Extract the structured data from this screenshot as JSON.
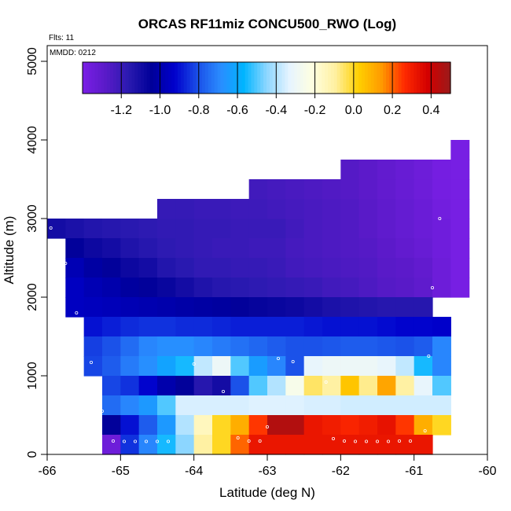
{
  "chart_data": {
    "type": "heatmap",
    "title": "ORCAS RF11miz CONCU500_RWO (Log)",
    "flights_label": "Flts: 11",
    "date_label": "MMDD: 0212",
    "xlabel": "Latitude (deg N)",
    "ylabel": "Altitude (m)",
    "xlim": [
      -66,
      -60
    ],
    "ylim": [
      0,
      5200
    ],
    "x_ticks": [
      -66,
      -65,
      -64,
      -63,
      -62,
      -61,
      -60
    ],
    "y_ticks": [
      0,
      1000,
      2000,
      3000,
      4000,
      5000
    ],
    "grid": false,
    "legend": "colorbar-top",
    "colorbar": {
      "range": [
        -1.4,
        0.5
      ],
      "ticks": [
        -1.2,
        -1.0,
        -0.8,
        -0.6,
        -0.4,
        -0.2,
        0.0,
        0.2,
        0.4
      ],
      "colors": [
        "#7a1fe6",
        "#5a1ac8",
        "#2a1ab0",
        "#000099",
        "#0000cc",
        "#1a4fe8",
        "#2a8cff",
        "#00b4ff",
        "#8cd6ff",
        "#e6f4ff",
        "#ffffe0",
        "#fff0a0",
        "#ffd000",
        "#ff9a00",
        "#ff2a00",
        "#d40000",
        "#9a1a1a"
      ]
    },
    "cells": [
      [
        -66.0,
        2750,
        -1.1
      ],
      [
        -65.75,
        2750,
        -1.12
      ],
      [
        -65.5,
        2750,
        -1.14
      ],
      [
        -65.25,
        2750,
        -1.15
      ],
      [
        -65.0,
        2750,
        -1.16
      ],
      [
        -64.75,
        2750,
        -1.17
      ],
      [
        -64.5,
        2750,
        -1.18
      ],
      [
        -64.25,
        2750,
        -1.18
      ],
      [
        -64.0,
        2750,
        -1.19
      ],
      [
        -63.75,
        2750,
        -1.19
      ],
      [
        -63.5,
        2750,
        -1.2
      ],
      [
        -63.25,
        2750,
        -1.2
      ],
      [
        -63.0,
        2750,
        -1.2
      ],
      [
        -62.75,
        2750,
        -1.22
      ],
      [
        -62.5,
        2750,
        -1.24
      ],
      [
        -62.25,
        2750,
        -1.25
      ],
      [
        -62.0,
        2750,
        -1.26
      ],
      [
        -61.75,
        2750,
        -1.28
      ],
      [
        -61.5,
        2750,
        -1.3
      ],
      [
        -61.25,
        2750,
        -1.32
      ],
      [
        -61.0,
        2750,
        -1.34
      ],
      [
        -60.75,
        2750,
        -1.36
      ],
      [
        -65.75,
        2500,
        -1.05
      ],
      [
        -65.5,
        2500,
        -1.08
      ],
      [
        -65.25,
        2500,
        -1.1
      ],
      [
        -65.0,
        2500,
        -1.13
      ],
      [
        -64.75,
        2500,
        -1.15
      ],
      [
        -64.5,
        2500,
        -1.17
      ],
      [
        -64.25,
        2500,
        -1.18
      ],
      [
        -64.0,
        2500,
        -1.19
      ],
      [
        -63.75,
        2500,
        -1.2
      ],
      [
        -63.5,
        2500,
        -1.2
      ],
      [
        -63.25,
        2500,
        -1.21
      ],
      [
        -63.0,
        2500,
        -1.21
      ],
      [
        -62.75,
        2500,
        -1.23
      ],
      [
        -62.5,
        2500,
        -1.24
      ],
      [
        -62.25,
        2500,
        -1.25
      ],
      [
        -62.0,
        2500,
        -1.26
      ],
      [
        -61.75,
        2500,
        -1.27
      ],
      [
        -61.5,
        2500,
        -1.29
      ],
      [
        -61.25,
        2500,
        -1.31
      ],
      [
        -61.0,
        2500,
        -1.33
      ],
      [
        -60.75,
        2500,
        -1.36
      ],
      [
        -65.75,
        2250,
        -0.98
      ],
      [
        -65.5,
        2250,
        -1.02
      ],
      [
        -65.25,
        2250,
        -1.05
      ],
      [
        -65.0,
        2250,
        -1.08
      ],
      [
        -64.75,
        2250,
        -1.1
      ],
      [
        -64.5,
        2250,
        -1.14
      ],
      [
        -64.25,
        2250,
        -1.16
      ],
      [
        -64.0,
        2250,
        -1.18
      ],
      [
        -63.75,
        2250,
        -1.18
      ],
      [
        -63.5,
        2250,
        -1.19
      ],
      [
        -63.25,
        2250,
        -1.19
      ],
      [
        -63.0,
        2250,
        -1.2
      ],
      [
        -62.75,
        2250,
        -1.22
      ],
      [
        -62.5,
        2250,
        -1.23
      ],
      [
        -62.25,
        2250,
        -1.24
      ],
      [
        -62.0,
        2250,
        -1.25
      ],
      [
        -61.75,
        2250,
        -1.26
      ],
      [
        -61.5,
        2250,
        -1.28
      ],
      [
        -61.25,
        2250,
        -1.29
      ],
      [
        -61.0,
        2250,
        -1.31
      ],
      [
        -60.75,
        2250,
        -1.35
      ],
      [
        -65.75,
        2000,
        -0.95
      ],
      [
        -65.5,
        2000,
        -0.98
      ],
      [
        -65.25,
        2000,
        -1.0
      ],
      [
        -65.0,
        2000,
        -1.03
      ],
      [
        -64.75,
        2000,
        -1.05
      ],
      [
        -64.5,
        2000,
        -1.07
      ],
      [
        -64.25,
        2000,
        -1.1
      ],
      [
        -64.0,
        2000,
        -1.13
      ],
      [
        -63.75,
        2000,
        -1.15
      ],
      [
        -63.5,
        2000,
        -1.16
      ],
      [
        -63.25,
        2000,
        -1.17
      ],
      [
        -63.0,
        2000,
        -1.18
      ],
      [
        -62.75,
        2000,
        -1.19
      ],
      [
        -62.5,
        2000,
        -1.2
      ],
      [
        -62.25,
        2000,
        -1.22
      ],
      [
        -62.0,
        2000,
        -1.23
      ],
      [
        -61.75,
        2000,
        -1.25
      ],
      [
        -61.5,
        2000,
        -1.27
      ],
      [
        -61.25,
        2000,
        -1.28
      ],
      [
        -61.0,
        2000,
        -1.3
      ],
      [
        -60.75,
        2000,
        -1.35
      ],
      [
        -65.75,
        1750,
        -0.95
      ],
      [
        -65.5,
        1750,
        -0.96
      ],
      [
        -65.25,
        1750,
        -0.97
      ],
      [
        -65.0,
        1750,
        -0.98
      ],
      [
        -64.75,
        1750,
        -0.99
      ],
      [
        -64.5,
        1750,
        -1.0
      ],
      [
        -64.25,
        1750,
        -1.01
      ],
      [
        -64.0,
        1750,
        -1.02
      ],
      [
        -63.75,
        1750,
        -1.03
      ],
      [
        -63.5,
        1750,
        -1.05
      ],
      [
        -63.25,
        1750,
        -1.06
      ],
      [
        -63.0,
        1750,
        -1.07
      ],
      [
        -62.75,
        1750,
        -1.08
      ],
      [
        -62.5,
        1750,
        -1.1
      ],
      [
        -62.25,
        1750,
        -1.12
      ],
      [
        -62.0,
        1750,
        -1.13
      ],
      [
        -61.75,
        1750,
        -1.14
      ],
      [
        -61.5,
        1750,
        -1.15
      ],
      [
        -61.25,
        1750,
        -1.15
      ],
      [
        -61.0,
        1750,
        -1.15
      ],
      [
        -65.5,
        1500,
        -0.9
      ],
      [
        -65.25,
        1500,
        -0.88
      ],
      [
        -65.0,
        1500,
        -0.86
      ],
      [
        -64.75,
        1500,
        -0.85
      ],
      [
        -64.5,
        1500,
        -0.85
      ],
      [
        -64.25,
        1500,
        -0.86
      ],
      [
        -64.0,
        1500,
        -0.86
      ],
      [
        -63.75,
        1500,
        -0.87
      ],
      [
        -63.5,
        1500,
        -0.88
      ],
      [
        -63.25,
        1500,
        -0.88
      ],
      [
        -63.0,
        1500,
        -0.88
      ],
      [
        -62.75,
        1500,
        -0.88
      ],
      [
        -62.5,
        1500,
        -0.89
      ],
      [
        -62.25,
        1500,
        -0.9
      ],
      [
        -62.0,
        1500,
        -0.9
      ],
      [
        -61.75,
        1500,
        -0.9
      ],
      [
        -61.5,
        1500,
        -0.91
      ],
      [
        -61.25,
        1500,
        -0.92
      ],
      [
        -61.0,
        1500,
        -0.92
      ],
      [
        -60.75,
        1500,
        -0.93
      ],
      [
        -65.5,
        1250,
        -0.83
      ],
      [
        -65.25,
        1250,
        -0.8
      ],
      [
        -65.0,
        1250,
        -0.75
      ],
      [
        -64.75,
        1250,
        -0.7
      ],
      [
        -64.5,
        1250,
        -0.68
      ],
      [
        -64.25,
        1250,
        -0.68
      ],
      [
        -64.0,
        1250,
        -0.7
      ],
      [
        -63.75,
        1250,
        -0.72
      ],
      [
        -63.5,
        1250,
        -0.74
      ],
      [
        -63.25,
        1250,
        -0.76
      ],
      [
        -63.0,
        1250,
        -0.78
      ],
      [
        -62.75,
        1250,
        -0.8
      ],
      [
        -62.5,
        1250,
        -0.8
      ],
      [
        -62.25,
        1250,
        -0.79
      ],
      [
        -62.0,
        1250,
        -0.78
      ],
      [
        -61.75,
        1250,
        -0.78
      ],
      [
        -61.5,
        1250,
        -0.79
      ],
      [
        -61.25,
        1250,
        -0.8
      ],
      [
        -61.0,
        1250,
        -0.78
      ],
      [
        -60.75,
        1250,
        -0.7
      ],
      [
        -65.5,
        1000,
        -0.82
      ],
      [
        -65.25,
        1000,
        -0.78
      ],
      [
        -65.0,
        1000,
        -0.72
      ],
      [
        -64.75,
        1000,
        -0.68
      ],
      [
        -64.5,
        1000,
        -0.62
      ],
      [
        -64.25,
        1000,
        -0.55
      ],
      [
        -64.0,
        1000,
        -0.38
      ],
      [
        -63.75,
        1000,
        -0.3
      ],
      [
        -63.5,
        1000,
        -0.5
      ],
      [
        -63.25,
        1000,
        -0.64
      ],
      [
        -63.0,
        1000,
        -0.7
      ],
      [
        -62.75,
        1000,
        -0.8
      ],
      [
        -62.5,
        1000,
        -0.32
      ],
      [
        -62.25,
        1000,
        -0.3
      ],
      [
        -62.0,
        1000,
        -0.3
      ],
      [
        -61.75,
        1000,
        -0.3
      ],
      [
        -61.5,
        1000,
        -0.32
      ],
      [
        -61.25,
        1000,
        -0.38
      ],
      [
        -61.0,
        1000,
        -0.55
      ],
      [
        -60.75,
        1000,
        -0.7
      ],
      [
        -65.25,
        750,
        -0.82
      ],
      [
        -65.0,
        750,
        -0.85
      ],
      [
        -64.75,
        750,
        -0.92
      ],
      [
        -64.5,
        750,
        -1.0
      ],
      [
        -64.25,
        750,
        -1.05
      ],
      [
        -64.0,
        750,
        -1.15
      ],
      [
        -63.75,
        750,
        -1.1
      ],
      [
        -63.5,
        750,
        -0.8
      ],
      [
        -63.25,
        750,
        -0.5
      ],
      [
        -63.0,
        750,
        -0.4
      ],
      [
        -62.75,
        750,
        -0.25
      ],
      [
        -62.5,
        750,
        -0.05
      ],
      [
        -62.25,
        750,
        -0.1
      ],
      [
        -62.0,
        750,
        0.05
      ],
      [
        -61.75,
        750,
        -0.08
      ],
      [
        -61.5,
        750,
        0.12
      ],
      [
        -61.25,
        750,
        -0.1
      ],
      [
        -61.0,
        750,
        -0.32
      ],
      [
        -60.75,
        750,
        -0.5
      ],
      [
        -65.25,
        500,
        -0.75
      ],
      [
        -65.0,
        500,
        -0.7
      ],
      [
        -64.75,
        500,
        -0.65
      ],
      [
        -64.5,
        500,
        -0.5
      ],
      [
        -64.25,
        500,
        -0.35
      ],
      [
        -64.0,
        500,
        -0.35
      ],
      [
        -63.75,
        500,
        -0.35
      ],
      [
        -63.5,
        500,
        -0.35
      ],
      [
        -63.25,
        500,
        -0.34
      ],
      [
        -63.0,
        500,
        -0.34
      ],
      [
        -62.75,
        500,
        -0.34
      ],
      [
        -62.5,
        500,
        -0.35
      ],
      [
        -62.25,
        500,
        -0.35
      ],
      [
        -62.0,
        500,
        -0.36
      ],
      [
        -61.75,
        500,
        -0.36
      ],
      [
        -61.5,
        500,
        -0.36
      ],
      [
        -61.25,
        500,
        -0.36
      ],
      [
        -61.0,
        500,
        -0.36
      ],
      [
        -60.75,
        500,
        -0.36
      ],
      [
        -65.25,
        250,
        -1.05
      ],
      [
        -65.0,
        250,
        -0.9
      ],
      [
        -64.75,
        250,
        -0.78
      ],
      [
        -64.5,
        250,
        -0.65
      ],
      [
        -64.25,
        250,
        -0.4
      ],
      [
        -64.0,
        250,
        -0.15
      ],
      [
        -63.75,
        250,
        0.0
      ],
      [
        -63.5,
        250,
        0.1
      ],
      [
        -63.25,
        250,
        0.25
      ],
      [
        -63.0,
        250,
        0.45
      ],
      [
        -62.75,
        250,
        0.45
      ],
      [
        -62.5,
        250,
        0.32
      ],
      [
        -62.25,
        250,
        0.3
      ],
      [
        -62.0,
        250,
        0.28
      ],
      [
        -61.75,
        250,
        0.3
      ],
      [
        -61.5,
        250,
        0.33
      ],
      [
        -61.25,
        250,
        0.25
      ],
      [
        -61.0,
        250,
        0.1
      ],
      [
        -60.75,
        250,
        0.0
      ],
      [
        -65.25,
        0,
        -1.35
      ],
      [
        -65.0,
        0,
        -0.85
      ],
      [
        -64.75,
        0,
        -0.7
      ],
      [
        -64.5,
        0,
        -0.55
      ],
      [
        -64.25,
        0,
        -0.45
      ],
      [
        -64.0,
        0,
        -0.1
      ],
      [
        -63.75,
        0,
        0.0
      ],
      [
        -63.5,
        0,
        0.2
      ],
      [
        -63.25,
        0,
        0.32
      ],
      [
        -63.0,
        0,
        0.32
      ],
      [
        -62.75,
        0,
        0.32
      ],
      [
        -62.5,
        0,
        0.32
      ],
      [
        -62.25,
        0,
        0.32
      ],
      [
        -62.0,
        0,
        0.32
      ],
      [
        -61.75,
        0,
        0.32
      ],
      [
        -61.5,
        0,
        0.32
      ],
      [
        -61.25,
        0,
        0.32
      ],
      [
        -61.0,
        0,
        0.32
      ],
      [
        -64.0,
        3000,
        -1.2
      ],
      [
        -63.75,
        3000,
        -1.2
      ],
      [
        -63.5,
        3000,
        -1.21
      ],
      [
        -63.25,
        3000,
        -1.21
      ],
      [
        -63.0,
        3000,
        -1.22
      ],
      [
        -62.75,
        3000,
        -1.23
      ],
      [
        -62.5,
        3000,
        -1.24
      ],
      [
        -62.25,
        3000,
        -1.25
      ],
      [
        -62.0,
        3000,
        -1.26
      ],
      [
        -61.75,
        3000,
        -1.28
      ],
      [
        -61.5,
        3000,
        -1.3
      ],
      [
        -61.25,
        3000,
        -1.32
      ],
      [
        -61.0,
        3000,
        -1.34
      ],
      [
        -60.75,
        3000,
        -1.37
      ],
      [
        -60.5,
        3000,
        -1.39
      ],
      [
        -64.5,
        3000,
        -1.19
      ],
      [
        -64.25,
        3000,
        -1.19
      ],
      [
        -63.25,
        3250,
        -1.22
      ],
      [
        -63.0,
        3250,
        -1.23
      ],
      [
        -62.75,
        3250,
        -1.24
      ],
      [
        -62.5,
        3250,
        -1.25
      ],
      [
        -62.25,
        3250,
        -1.26
      ],
      [
        -62.0,
        3250,
        -1.27
      ],
      [
        -61.75,
        3250,
        -1.29
      ],
      [
        -61.5,
        3250,
        -1.31
      ],
      [
        -61.25,
        3250,
        -1.33
      ],
      [
        -61.0,
        3250,
        -1.35
      ],
      [
        -60.75,
        3250,
        -1.38
      ],
      [
        -60.5,
        3250,
        -1.39
      ],
      [
        -62.0,
        3500,
        -1.27
      ],
      [
        -61.75,
        3500,
        -1.29
      ],
      [
        -61.5,
        3500,
        -1.31
      ],
      [
        -61.25,
        3500,
        -1.33
      ],
      [
        -61.0,
        3500,
        -1.35
      ],
      [
        -60.75,
        3500,
        -1.38
      ],
      [
        -60.5,
        3500,
        -1.39
      ],
      [
        -60.5,
        3750,
        -1.39
      ],
      [
        -60.5,
        2750,
        -1.39
      ],
      [
        -60.5,
        2500,
        -1.39
      ],
      [
        -60.5,
        2250,
        -1.39
      ],
      [
        -60.5,
        2000,
        -1.39
      ]
    ],
    "cell_size": [
      0.25,
      250
    ],
    "samples": [
      [
        -65.95,
        2880
      ],
      [
        -65.75,
        2430
      ],
      [
        -65.6,
        1800
      ],
      [
        -65.4,
        1170
      ],
      [
        -65.25,
        550
      ],
      [
        -65.1,
        170
      ],
      [
        -64.95,
        165
      ],
      [
        -64.8,
        165
      ],
      [
        -64.65,
        165
      ],
      [
        -64.5,
        165
      ],
      [
        -64.35,
        165
      ],
      [
        -64.0,
        1150
      ],
      [
        -63.6,
        800
      ],
      [
        -63.4,
        210
      ],
      [
        -63.25,
        170
      ],
      [
        -63.1,
        170
      ],
      [
        -63.0,
        350
      ],
      [
        -62.85,
        1220
      ],
      [
        -62.65,
        1180
      ],
      [
        -62.2,
        920
      ],
      [
        -62.1,
        200
      ],
      [
        -61.95,
        170
      ],
      [
        -61.8,
        165
      ],
      [
        -61.65,
        165
      ],
      [
        -61.5,
        165
      ],
      [
        -61.35,
        165
      ],
      [
        -61.2,
        170
      ],
      [
        -61.05,
        170
      ],
      [
        -60.85,
        300
      ],
      [
        -60.8,
        1250
      ],
      [
        -60.75,
        2120
      ],
      [
        -60.65,
        3000
      ],
      [
        -60.55,
        3900
      ]
    ]
  }
}
